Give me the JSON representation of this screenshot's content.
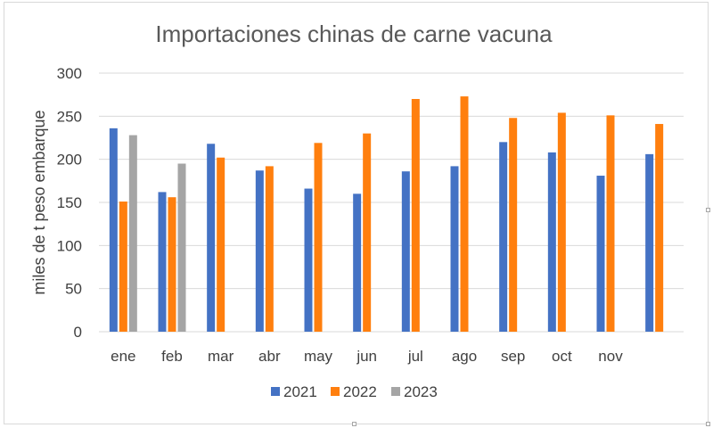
{
  "chart_data": {
    "type": "bar",
    "title": "Importaciones chinas de carne vacuna",
    "xlabel": "",
    "ylabel": "miles de t peso embarque",
    "categories": [
      "ene",
      "feb",
      "mar",
      "abr",
      "may",
      "jun",
      "jul",
      "ago",
      "sep",
      "oct",
      "nov",
      ""
    ],
    "ylim": [
      0,
      300
    ],
    "yticks": [
      0,
      50,
      100,
      150,
      200,
      250,
      300
    ],
    "grid": true,
    "legend_position": "bottom",
    "series": [
      {
        "name": "2021",
        "color": "#4472C4",
        "values": [
          236,
          162,
          218,
          187,
          166,
          160,
          186,
          192,
          220,
          208,
          181,
          206
        ]
      },
      {
        "name": "2022",
        "color": "#FF7F0E",
        "values": [
          151,
          156,
          202,
          192,
          219,
          230,
          270,
          273,
          248,
          254,
          251,
          241
        ]
      },
      {
        "name": "2023",
        "color": "#A5A5A5",
        "values": [
          228,
          195,
          null,
          null,
          null,
          null,
          null,
          null,
          null,
          null,
          null,
          null
        ]
      }
    ]
  }
}
